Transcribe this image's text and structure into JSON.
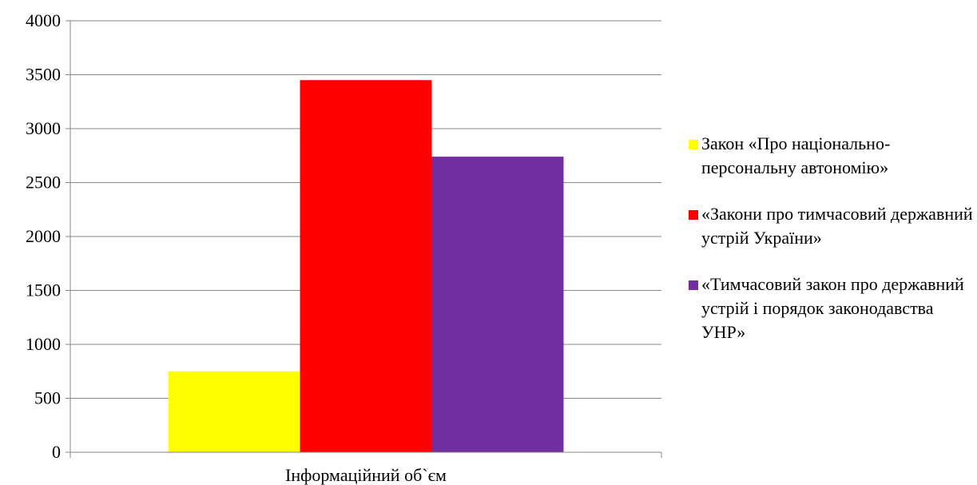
{
  "chart_data": {
    "type": "bar",
    "categories": [
      "Інформаційний об`єм"
    ],
    "series": [
      {
        "name": "Закон «Про національно-персональну автономію»",
        "values": [
          750
        ],
        "color": "#ffff00"
      },
      {
        "name": "«Закони про тимчасовий державний устрій України»",
        "values": [
          3450
        ],
        "color": "#ff0000"
      },
      {
        "name": "«Тимчасовий закон про державний устрій і порядок законодавства УНР»",
        "values": [
          2740
        ],
        "color": "#7030a0"
      }
    ],
    "yticks": [
      "0",
      "500",
      "1000",
      "1500",
      "2000",
      "2500",
      "3000",
      "3500",
      "4000"
    ],
    "ylim": [
      0,
      4000
    ],
    "grid": true,
    "legend_position": "right"
  }
}
